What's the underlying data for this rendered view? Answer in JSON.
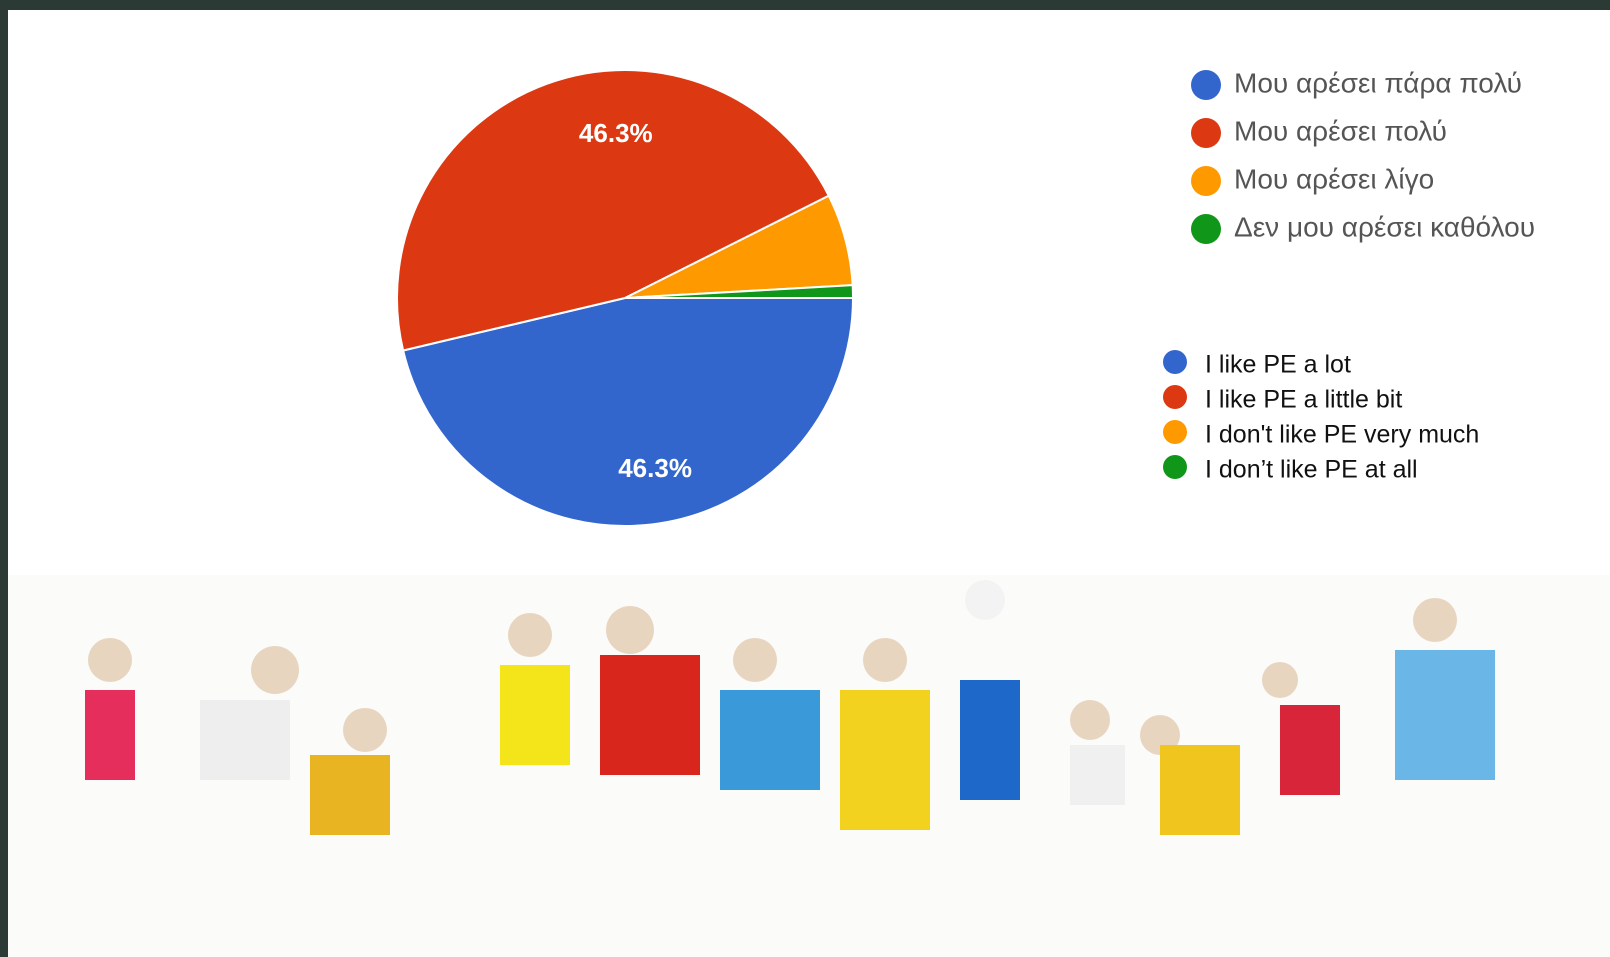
{
  "chart_data": {
    "type": "pie",
    "series": [
      {
        "name": "Μου αρέσει πάρα πολύ",
        "color": "#3366cc"
      },
      {
        "name": "Μου αρέσει πολύ",
        "color": "#dc3912"
      },
      {
        "name": "Μου αρέσει λίγο",
        "color": "#ff9900"
      },
      {
        "name": "Δεν μου αρέσει καθόλου",
        "color": "#109618"
      }
    ],
    "values": [
      46.3,
      46.3,
      6.5,
      0.9
    ],
    "value_labels": [
      "46.3%",
      "46.3%",
      null,
      null
    ],
    "legend_translation": [
      "I like PE a lot",
      "I like PE a little bit",
      "I don't like PE very much",
      "I don’t like PE at all"
    ]
  }
}
